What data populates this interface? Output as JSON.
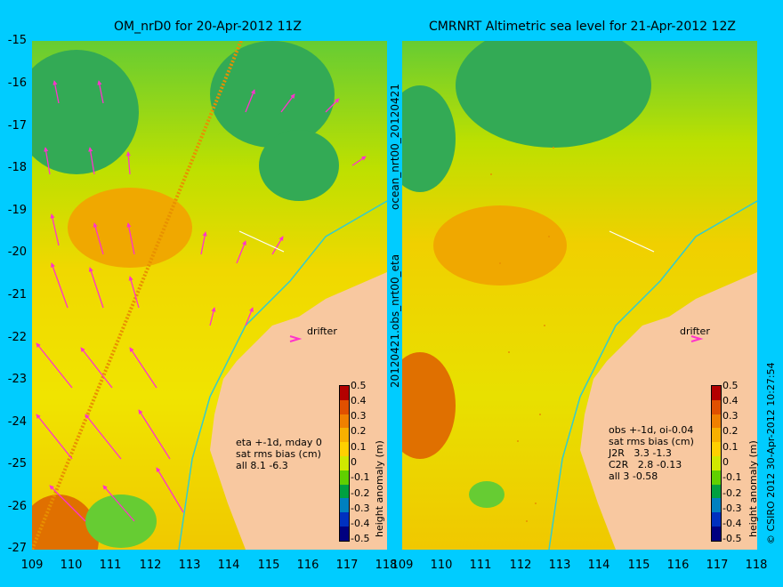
{
  "left_panel": {
    "title": "OM_nrD0 for 20-Apr-2012 11Z",
    "annotation": "eta +-1d, mday 0\nsat rms bias (cm)\nall 8.1 -6.3",
    "drifter_label": "drifter"
  },
  "right_panel": {
    "title": "CMRNRT Altimetric sea level  for 21-Apr-2012 12Z",
    "annotation": "obs +-1d, oi-0.04\nsat rms bias (cm)\nJ2R   3.3 -1.3\nC2R   2.8 -0.13\nall 3 -0.58",
    "drifter_label": "drifter"
  },
  "y_ticks": [
    "-15",
    "-16",
    "-17",
    "-18",
    "-19",
    "-20",
    "-21",
    "-22",
    "-23",
    "-24",
    "-25",
    "-26",
    "-27"
  ],
  "x_ticks": [
    "109",
    "110",
    "111",
    "112",
    "113",
    "114",
    "115",
    "116",
    "117",
    "118"
  ],
  "middle_label_top": "ocean_nrt00_20120421",
  "middle_label_bottom": "20120421.obs_nrt00_eta",
  "colorbar": {
    "label": "height anomaly (m)",
    "ticks": [
      "0.5",
      "0.4",
      "0.3",
      "0.2",
      "0.1",
      "0",
      "-0.1",
      "-0.2",
      "-0.3",
      "-0.4",
      "-0.5"
    ],
    "colors": [
      "#b30000",
      "#e05000",
      "#f08000",
      "#f8b000",
      "#ffd000",
      "#d0e800",
      "#60d000",
      "#00a040",
      "#0080c0",
      "#0030c0",
      "#000080"
    ]
  },
  "credit": "© CSIRO 2012   30-Apr-2012 10:27:54",
  "colors": {
    "background": "#00ccff",
    "land": "#f8c8a0",
    "arrow": "#ff33cc",
    "coast_track": "#33cccc"
  }
}
